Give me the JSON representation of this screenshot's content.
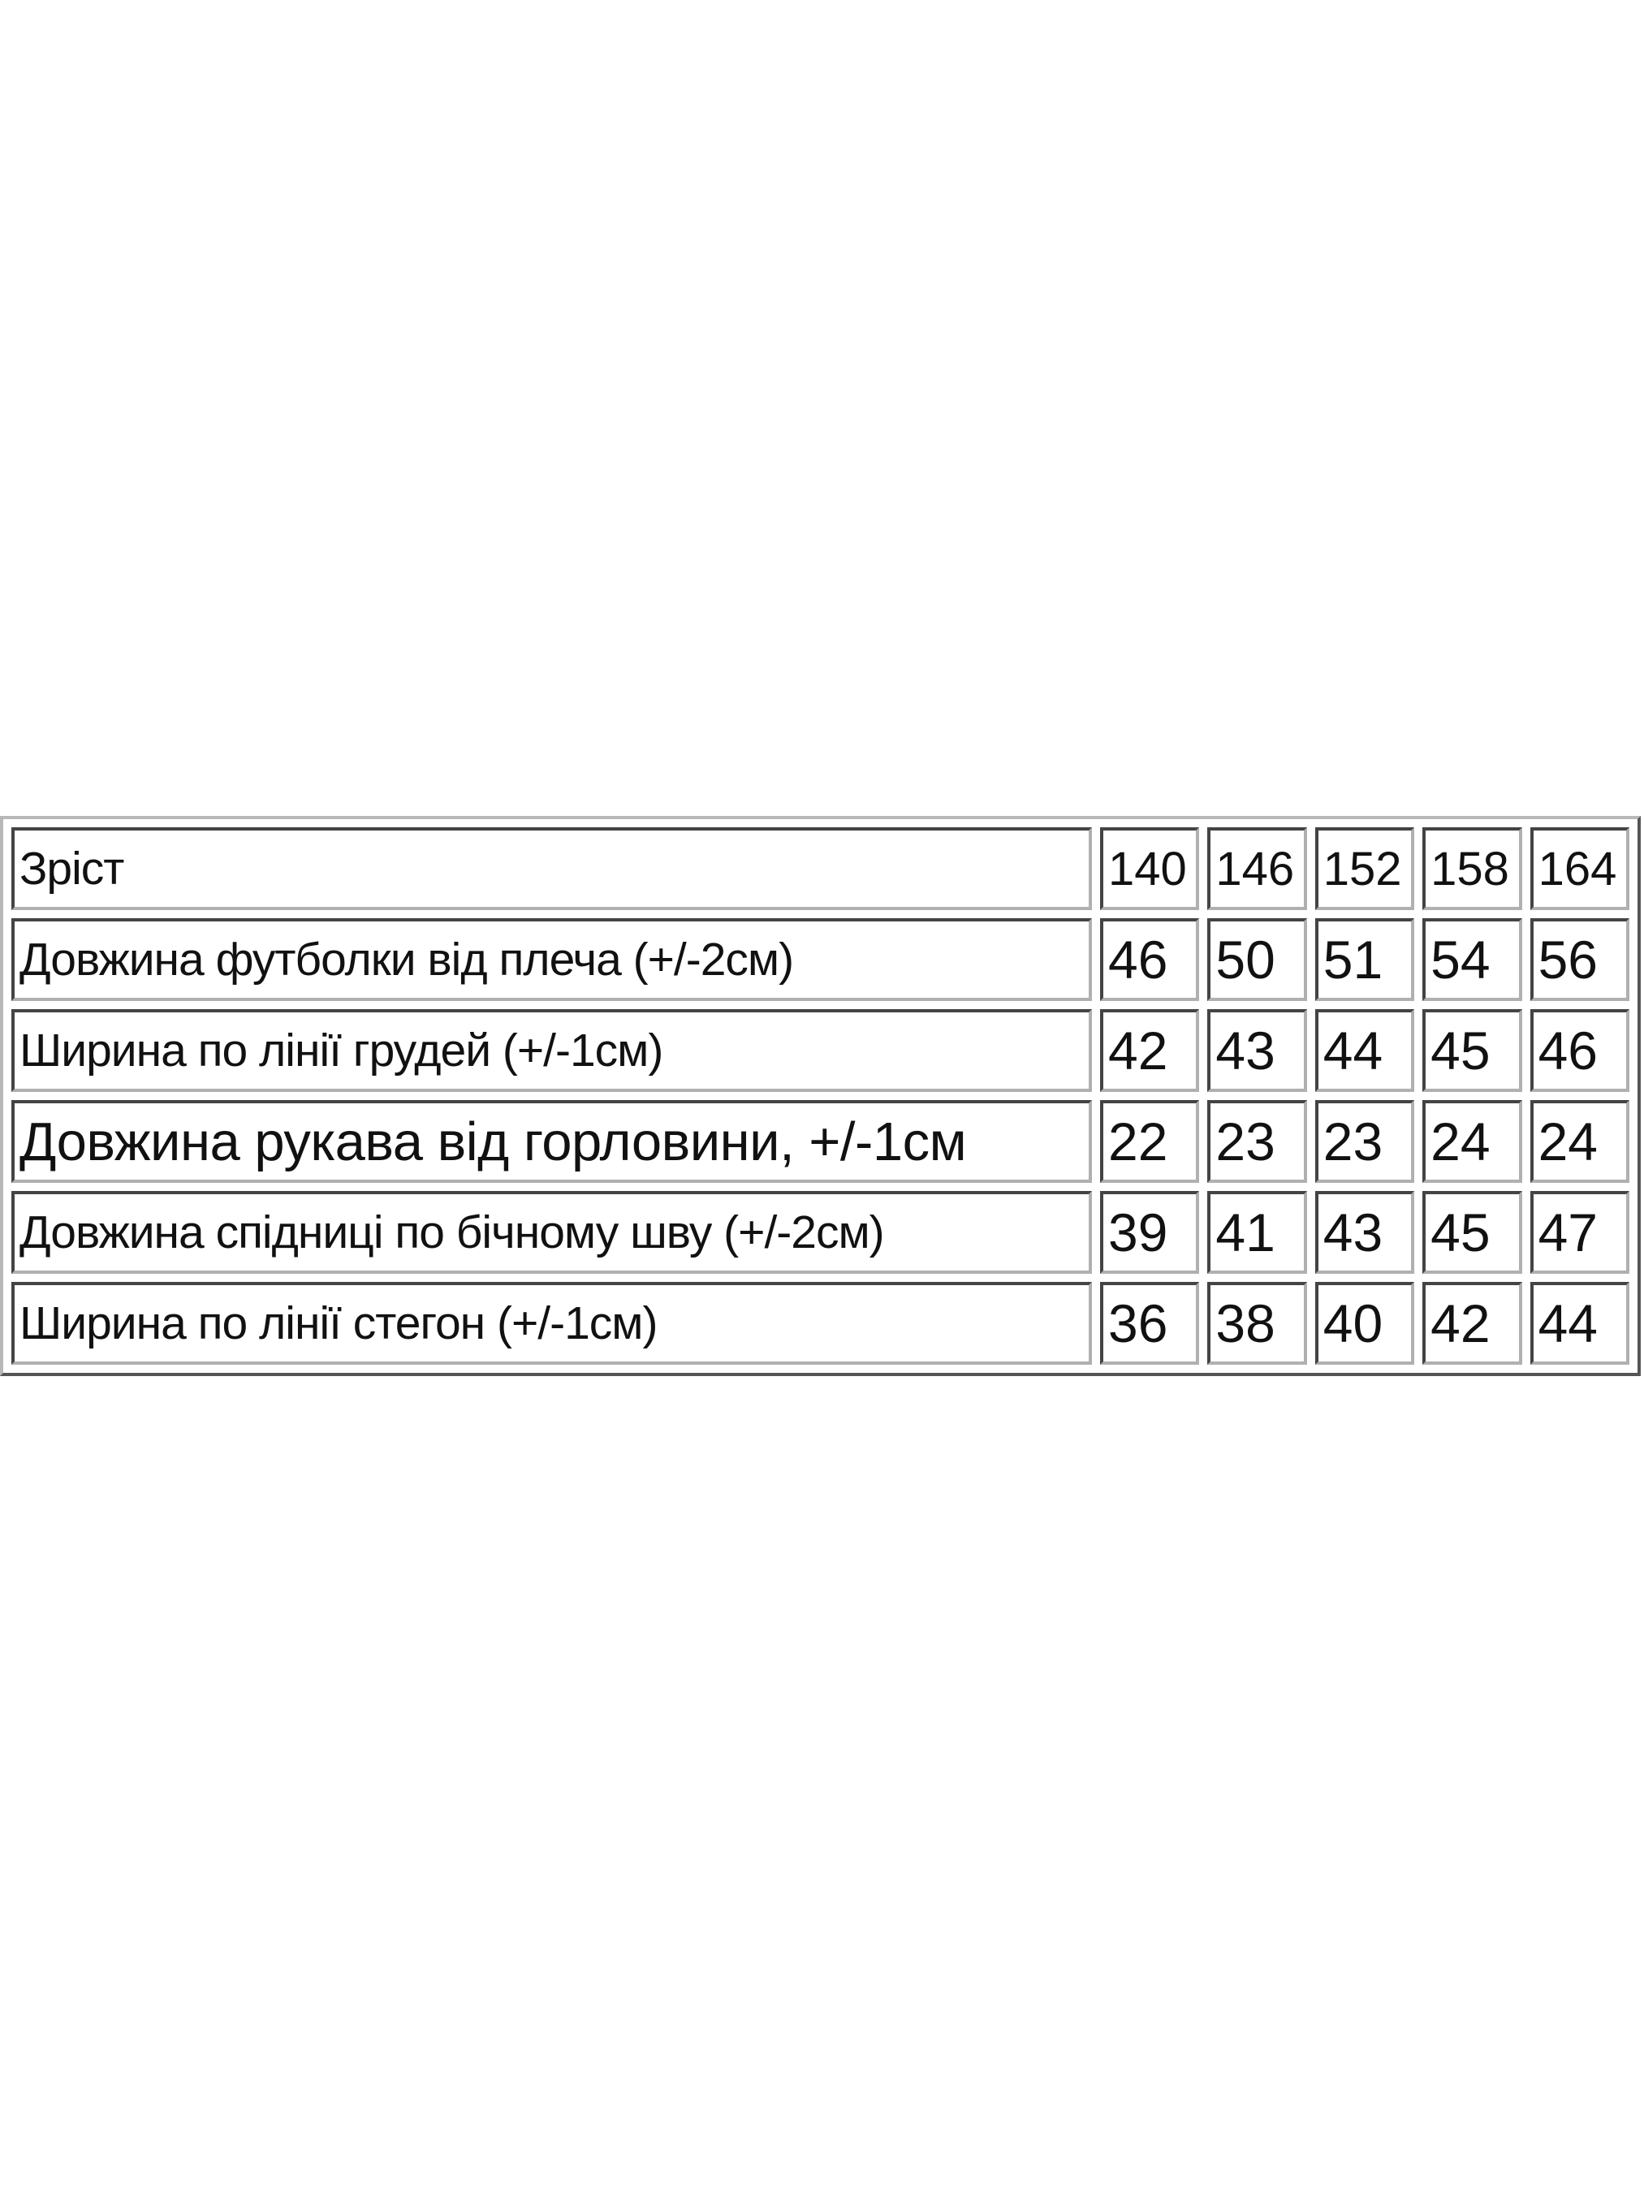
{
  "table": {
    "header": {
      "label": "Зріст",
      "sizes": [
        "140",
        "146",
        "152",
        "158",
        "164"
      ]
    },
    "rows": [
      {
        "label": "Довжина футболки від плеча (+/-2см)",
        "values": [
          "46",
          "50",
          "51",
          "54",
          "56"
        ]
      },
      {
        "label": "Ширина по лінії грудей (+/-1см)",
        "values": [
          "42",
          "43",
          "44",
          "45",
          "46"
        ]
      },
      {
        "label": "Довжина рукава від горловини, +/-1см",
        "values": [
          "22",
          "23",
          "23",
          "24",
          "24"
        ]
      },
      {
        "label": "Довжина спідниці по бічному шву (+/-2см)",
        "values": [
          "39",
          "41",
          "43",
          "45",
          "47"
        ]
      },
      {
        "label": "Ширина по лінії стегон (+/-1см)",
        "values": [
          "36",
          "38",
          "40",
          "42",
          "44"
        ]
      }
    ]
  }
}
